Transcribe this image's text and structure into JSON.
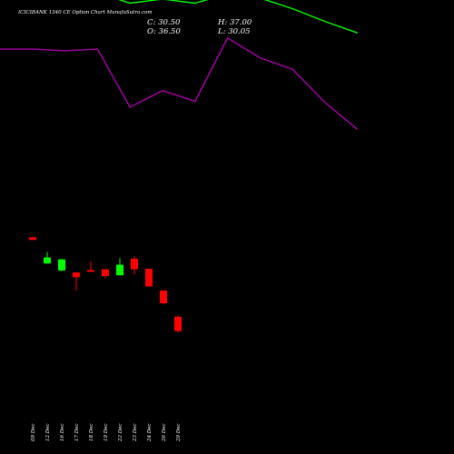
{
  "title": "ICICIBANK 1340 CE Option Chart MunafaSutra.com",
  "ohlc": {
    "close_label": "C: 30.50",
    "high_label": "H: 37.00",
    "open_label": "O: 36.50",
    "low_label": "L: 30.05"
  },
  "colors": {
    "background": "#000000",
    "up": "#00ff00",
    "down": "#ff0000",
    "upper_line": "#00ff00",
    "lower_line": "#aa00aa",
    "text": "#ffffff"
  },
  "chart_data": {
    "type": "candlestick",
    "candles": [
      {
        "date": "09 Dec",
        "open": 69.5,
        "high": 69.5,
        "low": 68.4,
        "close": 68.4
      },
      {
        "date": "12 Dec",
        "open": 58.6,
        "high": 63.4,
        "low": 58.6,
        "close": 61.1
      },
      {
        "date": "16 Dec",
        "open": 55.7,
        "high": 60.6,
        "low": 55.4,
        "close": 60.3
      },
      {
        "date": "17 Dec",
        "open": 54.9,
        "high": 54.9,
        "low": 47.2,
        "close": 52.9
      },
      {
        "date": "18 Dec",
        "open": 55.9,
        "high": 59.6,
        "low": 55.4,
        "close": 55.7
      },
      {
        "date": "19 Dec",
        "open": 56.2,
        "high": 56.2,
        "low": 52.4,
        "close": 53.4
      },
      {
        "date": "22 Dec",
        "open": 53.7,
        "high": 60.8,
        "low": 53.7,
        "close": 58.1
      },
      {
        "date": "23 Dec",
        "open": 60.6,
        "high": 61.6,
        "low": 54.1,
        "close": 56.2
      },
      {
        "date": "24 Dec",
        "open": 56.4,
        "high": 56.4,
        "low": 48.8,
        "close": 49.1
      },
      {
        "date": "26 Dec",
        "open": 47.4,
        "high": 47.4,
        "low": 41.6,
        "close": 42.1
      },
      {
        "date": "29 Dec",
        "open": 36.5,
        "high": 37.0,
        "low": 30.05,
        "close": 30.5
      }
    ],
    "upper_line": [
      180.0,
      180.0,
      172.1,
      171.2,
      166.8,
      168.5,
      166.8,
      170.6,
      168.9,
      164.5,
      159.2,
      154.4
    ],
    "lower_line": [
      147.7,
      147.7,
      147.0,
      147.7,
      123.6,
      130.5,
      126.0,
      152.3,
      144.1,
      139.3,
      125.5,
      114.3
    ]
  }
}
